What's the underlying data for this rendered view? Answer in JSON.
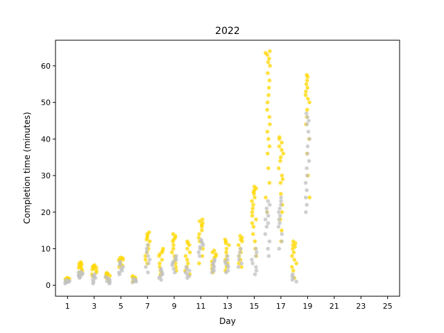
{
  "chart_data": {
    "type": "scatter",
    "title": "2022",
    "xlabel": "Day",
    "ylabel": "Completion time (minutes)",
    "xlim": [
      0.1,
      25.9
    ],
    "ylim": [
      -3,
      67
    ],
    "x_ticks": [
      1,
      3,
      5,
      7,
      9,
      11,
      13,
      15,
      17,
      19,
      21,
      23,
      25
    ],
    "y_ticks": [
      0,
      10,
      20,
      30,
      40,
      50,
      60
    ],
    "grid": false,
    "legend": "none",
    "colors": {
      "gold": "#FFD700",
      "silver": "#C0C0C0"
    },
    "series": [
      {
        "color": "gold",
        "points": [
          {
            "day": 1,
            "values": [
              1.0,
              1.2,
              1.3,
              1.4,
              1.5,
              1.6,
              1.7,
              1.8,
              1.9,
              2.0
            ]
          },
          {
            "day": 2,
            "values": [
              3.5,
              4.0,
              4.5,
              4.8,
              5.0,
              5.3,
              5.6,
              5.9,
              6.1,
              6.3
            ]
          },
          {
            "day": 3,
            "values": [
              2.5,
              3.0,
              3.5,
              4.0,
              4.3,
              4.6,
              4.9,
              5.1,
              5.3,
              5.5
            ]
          },
          {
            "day": 4,
            "values": [
              1.5,
              2.0,
              2.3,
              2.6,
              2.8,
              3.0,
              3.2,
              3.4
            ]
          },
          {
            "day": 5,
            "values": [
              5.0,
              5.5,
              6.0,
              6.4,
              6.8,
              7.0,
              7.2,
              7.4,
              7.6
            ]
          },
          {
            "day": 6,
            "values": [
              1.0,
              1.3,
              1.6,
              1.9,
              2.1,
              2.3,
              2.5
            ]
          },
          {
            "day": 7,
            "values": [
              6.0,
              7.0,
              8.0,
              9.0,
              10.0,
              11.0,
              12.0,
              12.5,
              13.0,
              13.5,
              14.0,
              14.5
            ]
          },
          {
            "day": 8,
            "values": [
              3.0,
              4.0,
              5.0,
              6.0,
              7.0,
              8.0,
              8.5,
              9.0,
              9.5,
              10.0
            ]
          },
          {
            "day": 9,
            "values": [
              4.0,
              5.0,
              6.0,
              7.0,
              8.0,
              9.0,
              10.0,
              11.0,
              12.0,
              12.5,
              13.0,
              13.5,
              14.0
            ]
          },
          {
            "day": 10,
            "values": [
              3.0,
              4.0,
              5.0,
              6.0,
              7.0,
              8.0,
              9.0,
              10.0,
              11.0,
              11.5,
              12.0
            ]
          },
          {
            "day": 11,
            "values": [
              6.0,
              8.0,
              10.0,
              12.0,
              13.0,
              14.0,
              15.0,
              16.0,
              16.5,
              17.0,
              17.5,
              18.0
            ]
          },
          {
            "day": 12,
            "values": [
              3.5,
              4.5,
              5.5,
              6.5,
              7.5,
              8.0,
              8.5,
              9.0,
              9.5
            ]
          },
          {
            "day": 13,
            "values": [
              4.0,
              5.0,
              6.0,
              7.0,
              8.0,
              9.0,
              10.0,
              11.0,
              11.5,
              12.0,
              12.5
            ]
          },
          {
            "day": 14,
            "values": [
              5.0,
              6.0,
              7.0,
              8.0,
              9.0,
              10.0,
              11.0,
              12.0,
              12.5,
              13.0,
              13.5
            ]
          },
          {
            "day": 15,
            "values": [
              8.0,
              10.0,
              12.0,
              14.0,
              16.0,
              17.0,
              18.0,
              19.0,
              20.0,
              21.0,
              22.0,
              23.0,
              24.0,
              25.0,
              25.5,
              26.0,
              26.5,
              27.0
            ]
          },
          {
            "day": 16,
            "values": [
              20.0,
              24.0,
              28.0,
              32.0,
              36.0,
              38.0,
              40.0,
              42.0,
              44.0,
              46.0,
              48.0,
              50.0,
              52.0,
              54.0,
              56.0,
              58.0,
              60.0,
              61.0,
              62.0,
              63.0,
              63.5,
              64.0
            ]
          },
          {
            "day": 17,
            "values": [
              12.0,
              15.0,
              18.0,
              20.0,
              22.0,
              25.0,
              28.0,
              29.0,
              30.0,
              32.0,
              34.0,
              35.0,
              36.0,
              37.0,
              38.0,
              39.0,
              40.0,
              40.5
            ]
          },
          {
            "day": 18,
            "values": [
              2.0,
              4.0,
              5.0,
              6.0,
              7.0,
              8.0,
              9.0,
              10.0,
              10.5,
              11.0,
              11.5,
              12.0
            ]
          },
          {
            "day": 19,
            "values": [
              24.0,
              30.0,
              36.0,
              40.0,
              44.0,
              46.0,
              48.0,
              50.0,
              51.0,
              52.0,
              53.0,
              54.0,
              55.0,
              56.0,
              57.0,
              57.5
            ]
          }
        ]
      },
      {
        "color": "silver",
        "points": [
          {
            "day": 1,
            "values": [
              0.5,
              0.7,
              0.9,
              1.0,
              1.1,
              1.2,
              1.3,
              1.4
            ]
          },
          {
            "day": 2,
            "values": [
              2.0,
              2.3,
              2.6,
              2.8,
              3.0,
              3.2,
              3.5,
              3.8
            ]
          },
          {
            "day": 3,
            "values": [
              0.5,
              1.0,
              1.5,
              2.0,
              2.3,
              2.6,
              3.0
            ]
          },
          {
            "day": 4,
            "values": [
              0.5,
              0.8,
              1.1,
              1.4,
              1.7,
              2.0,
              2.3
            ]
          },
          {
            "day": 5,
            "values": [
              3.0,
              3.5,
              4.0,
              4.5,
              5.0,
              5.5,
              6.0,
              6.5
            ]
          },
          {
            "day": 6,
            "values": [
              0.8,
              1.0,
              1.2,
              1.4,
              1.6,
              1.8
            ]
          },
          {
            "day": 7,
            "values": [
              3.5,
              5.0,
              6.0,
              7.0,
              8.0,
              9.0,
              10.0,
              11.0
            ]
          },
          {
            "day": 8,
            "values": [
              1.5,
              2.0,
              2.5,
              3.0,
              3.5,
              4.0,
              4.5
            ]
          },
          {
            "day": 9,
            "values": [
              3.5,
              4.5,
              5.5,
              6.0,
              6.5,
              7.0,
              7.5,
              8.0
            ]
          },
          {
            "day": 10,
            "values": [
              2.0,
              2.5,
              3.0,
              3.5,
              4.0,
              4.5,
              5.0
            ]
          },
          {
            "day": 11,
            "values": [
              8.0,
              9.0,
              10.0,
              10.5,
              11.0,
              11.5,
              12.0,
              12.5
            ]
          },
          {
            "day": 12,
            "values": [
              3.5,
              4.0,
              4.5,
              5.0,
              5.5,
              6.0,
              6.5,
              7.0
            ]
          },
          {
            "day": 13,
            "values": [
              3.5,
              4.0,
              5.0,
              5.5,
              6.0,
              6.5,
              7.0,
              8.0
            ]
          },
          {
            "day": 14,
            "values": [
              5.0,
              6.0,
              7.0,
              8.0,
              9.0,
              10.0
            ]
          },
          {
            "day": 15,
            "values": [
              3.0,
              4.0,
              5.0,
              6.0,
              7.0,
              8.0,
              9.0,
              10.0
            ]
          },
          {
            "day": 16,
            "values": [
              8.0,
              10.0,
              12.0,
              14.0,
              16.0,
              17.0,
              18.0,
              19.0,
              20.0,
              21.0,
              22.0,
              23.0
            ]
          },
          {
            "day": 17,
            "values": [
              10.0,
              12.0,
              14.0,
              16.0,
              17.0,
              18.0,
              19.0,
              20.0,
              21.0,
              22.0,
              23.0,
              24.0
            ]
          },
          {
            "day": 18,
            "values": [
              1.0,
              1.5,
              2.0,
              2.5,
              3.0
            ]
          },
          {
            "day": 19,
            "values": [
              20.0,
              22.0,
              24.0,
              26.0,
              28.0,
              30.0,
              32.0,
              34.0,
              36.0,
              38.0,
              40.0,
              42.0,
              44.0,
              45.0,
              46.0,
              47.0
            ]
          }
        ]
      }
    ]
  }
}
